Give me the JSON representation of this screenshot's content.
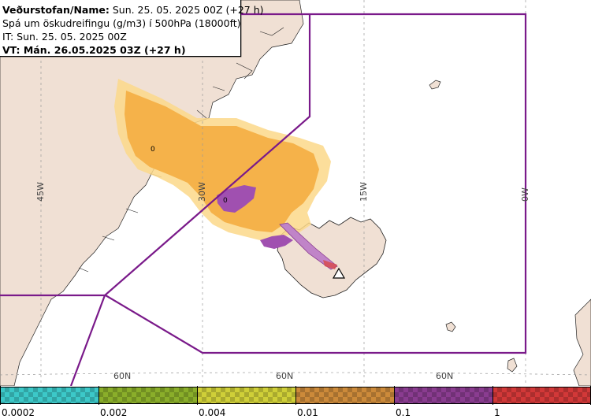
{
  "info": {
    "line1_label": "Veðurstofan/Name:",
    "line1_value": " Sun. 25. 05. 2025 00Z (+27 h)",
    "line2": "Spá um öskudreifingu (g/m3) í 500hPa (18000ft)",
    "line3": "IT: Sun. 25. 05. 2025 00Z",
    "line4": "VT: Mán. 26.05.2025 03Z (+27 h)"
  },
  "grid_labels": {
    "lon": [
      "45W",
      "30W",
      "15W",
      "0W"
    ],
    "lat": [
      "60N",
      "60N",
      "60N"
    ]
  },
  "plume_labels": [
    "0",
    "0"
  ],
  "legend": {
    "ticks": [
      "0.0002",
      "0.002",
      "0.004",
      "0.01",
      "0.1",
      "1"
    ],
    "colors": [
      "#3cc8c8",
      "#8aae2a",
      "#cfcf38",
      "#cc8a3a",
      "#8a3c90",
      "#d23838"
    ]
  },
  "colors": {
    "land": "#f0e0d4",
    "sea": "#ffffff",
    "boundary": "#7a1a8a",
    "ash_orange": "#f5b24a",
    "ash_light": "#fbc870",
    "ash_purple": "#a050b0"
  }
}
